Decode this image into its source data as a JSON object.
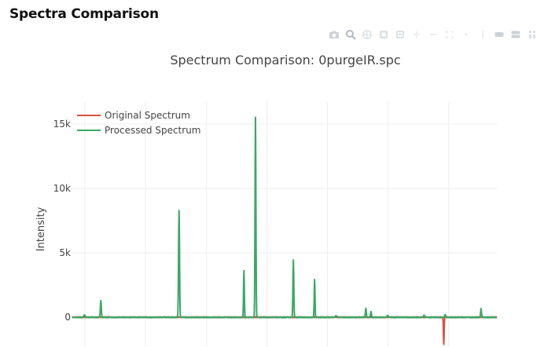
{
  "page": {
    "heading": "Spectra Comparison"
  },
  "modebar": {
    "icons": [
      "camera-icon",
      "zoom-icon",
      "pan-icon",
      "box-select-icon",
      "lasso-icon",
      "zoom-in-icon",
      "zoom-out-icon",
      "autoscale-icon",
      "reset-axes-icon",
      "spike-lines-icon",
      "hover-closest-icon",
      "hover-compare-icon",
      "plotly-logo-icon"
    ]
  },
  "chart_data": {
    "type": "line",
    "title": "Spectrum Comparison: 0purgeIR.spc",
    "xlabel": "",
    "ylabel": "Intensity",
    "xlim": [
      0,
      1400
    ],
    "ylim": [
      -2300,
      16700
    ],
    "yticks": [
      0,
      5000,
      10000,
      15000
    ],
    "ytick_labels": [
      "0",
      "5k",
      "10k",
      "15k"
    ],
    "xgrid": [
      0,
      200,
      400,
      600,
      800,
      1000,
      1200,
      1400
    ],
    "grid": true,
    "legend_position": "top-left",
    "series": [
      {
        "name": "Original Spectrum",
        "color": "#d9503f",
        "baseline": 10,
        "peaks": [
          {
            "x": 1225,
            "y": -2100,
            "w": 1.6
          }
        ]
      },
      {
        "name": "Processed Spectrum",
        "color": "#3aa864",
        "baseline": 0,
        "peaks": [
          {
            "x": 94,
            "y": 1300,
            "w": 2.2
          },
          {
            "x": 352,
            "y": 8300,
            "w": 2.2
          },
          {
            "x": 566,
            "y": 3650,
            "w": 1.8
          },
          {
            "x": 604,
            "y": 15500,
            "w": 2.0
          },
          {
            "x": 729,
            "y": 4450,
            "w": 2.0
          },
          {
            "x": 799,
            "y": 2950,
            "w": 1.8
          },
          {
            "x": 968,
            "y": 700,
            "w": 2.0
          },
          {
            "x": 985,
            "y": 450,
            "w": 2.0
          },
          {
            "x": 1230,
            "y": 200,
            "w": 3.0
          },
          {
            "x": 1348,
            "y": 650,
            "w": 2.0
          },
          {
            "x": 40,
            "y": 200,
            "w": 3.0
          },
          {
            "x": 870,
            "y": 120,
            "w": 4.0
          },
          {
            "x": 1040,
            "y": 150,
            "w": 3.0
          },
          {
            "x": 1160,
            "y": 160,
            "w": 3.0
          }
        ]
      }
    ]
  }
}
